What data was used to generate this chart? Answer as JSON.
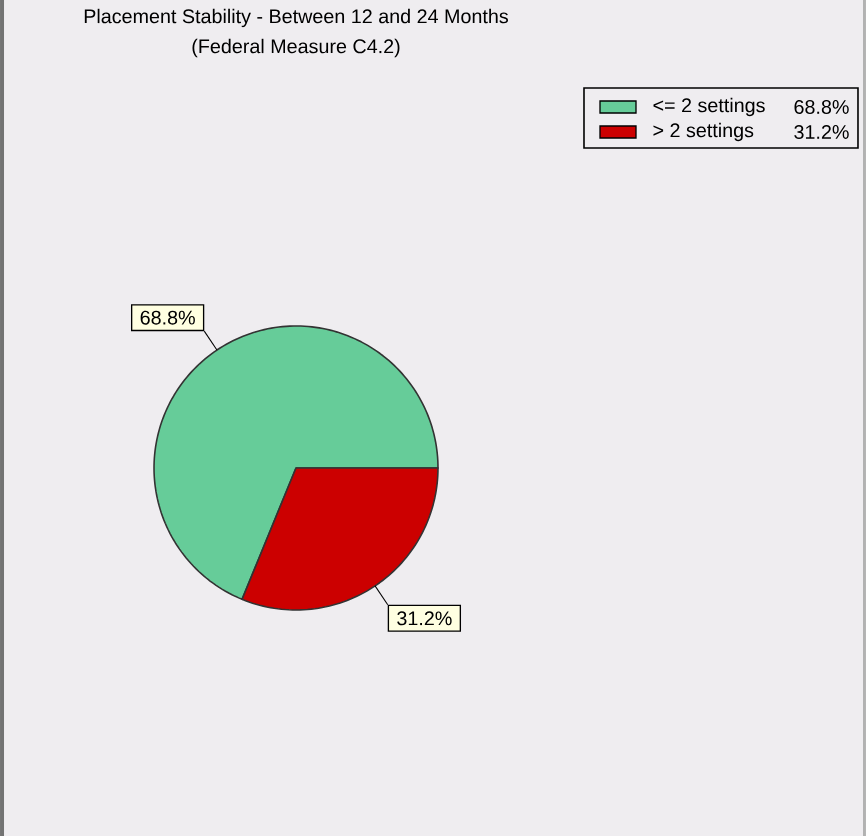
{
  "chart_data": {
    "type": "pie",
    "title": "Placement Stability - Between 12 and 24 Months",
    "subtitle": "(Federal Measure C4.2)",
    "categories": [
      "<= 2 settings",
      "> 2 settings"
    ],
    "values": [
      68.8,
      31.2
    ],
    "colors": [
      "#66cc99",
      "#cc0000"
    ],
    "value_labels": [
      "68.8%",
      "31.2%"
    ],
    "legend": "top right"
  }
}
